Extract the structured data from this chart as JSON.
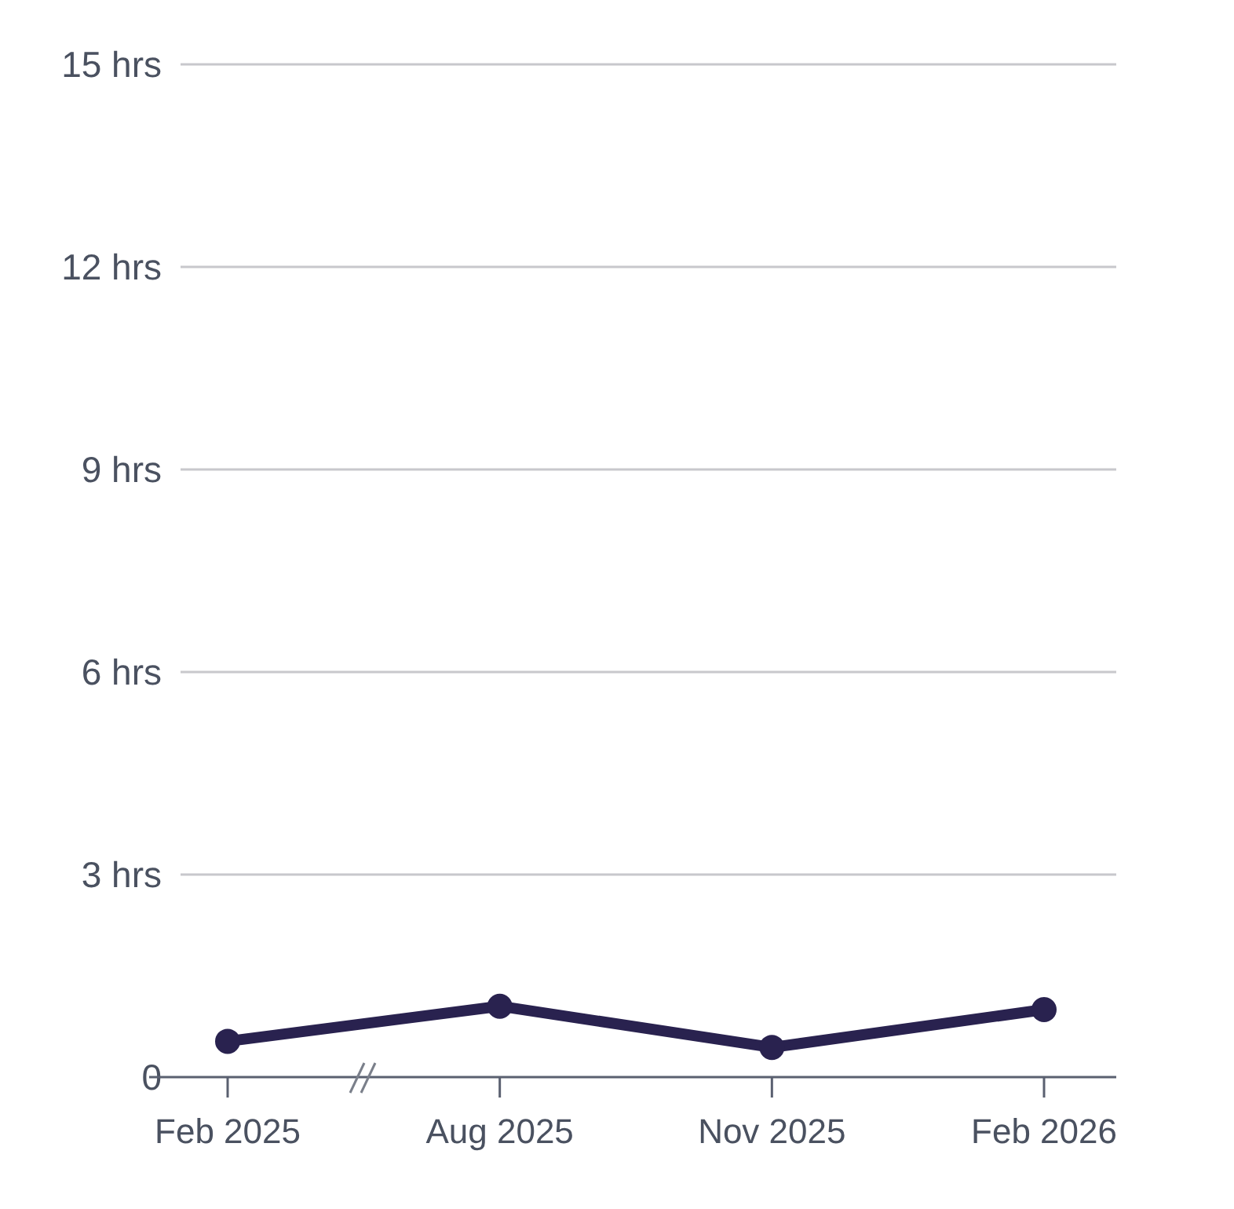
{
  "chart_data": {
    "type": "line",
    "categories": [
      "Feb 2025",
      "Aug 2025",
      "Nov 2025",
      "Feb 2026"
    ],
    "series": [
      {
        "color": "#29224f",
        "values": [
          0.53,
          1.05,
          0.44,
          1.0
        ]
      }
    ],
    "ylim": [
      0,
      15
    ],
    "yticks": [
      0,
      {
        "value": 3,
        "label": "3 hrs"
      },
      {
        "value": 6,
        "label": "6 hrs"
      },
      {
        "value": 9,
        "label": "9 hrs"
      },
      {
        "value": 12,
        "label": "12 hrs"
      },
      {
        "value": 15,
        "label": "15 hrs"
      }
    ],
    "grid": "y",
    "marker": "circle",
    "line_style": "solid"
  }
}
